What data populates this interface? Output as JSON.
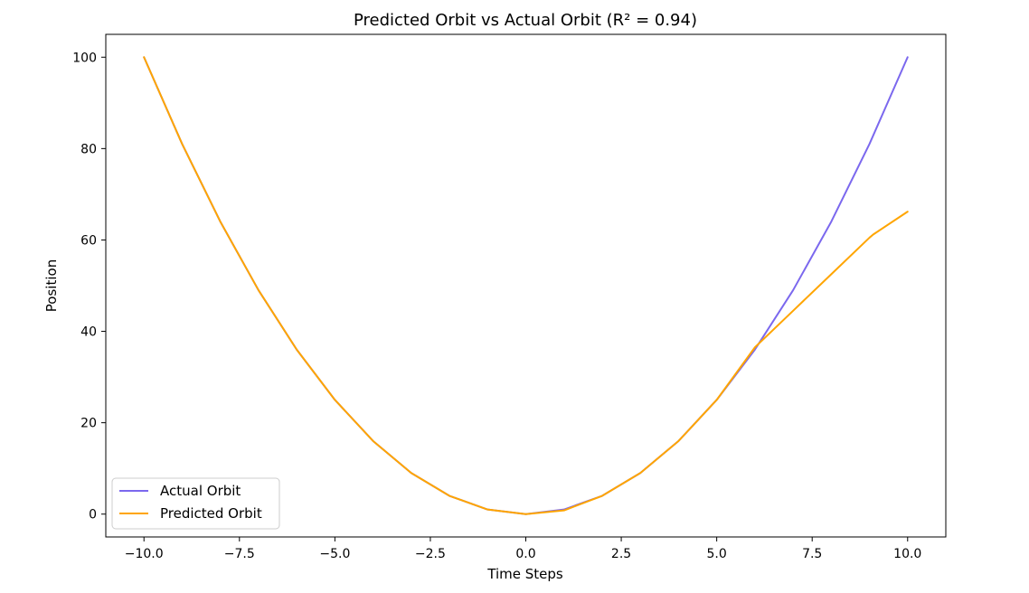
{
  "chart_data": {
    "type": "line",
    "title": "Predicted Orbit vs Actual Orbit (R² = 0.94)",
    "xlabel": "Time Steps",
    "ylabel": "Position",
    "xlim": [
      -11.0,
      11.0
    ],
    "ylim": [
      -5.0,
      105.0
    ],
    "xticks": [
      -10.0,
      -7.5,
      -5.0,
      -2.5,
      0.0,
      2.5,
      5.0,
      7.5,
      10.0
    ],
    "xtick_labels": [
      "−10.0",
      "−7.5",
      "−5.0",
      "−2.5",
      "0.0",
      "2.5",
      "5.0",
      "7.5",
      "10.0"
    ],
    "yticks": [
      0,
      20,
      40,
      60,
      80,
      100
    ],
    "ytick_labels": [
      "0",
      "20",
      "40",
      "60",
      "80",
      "100"
    ],
    "grid": false,
    "legend_position": "lower-left",
    "series": [
      {
        "name": "Actual Orbit",
        "color": "#7b68ee",
        "x": [
          -10,
          -9,
          -8,
          -7,
          -6,
          -5,
          -4,
          -3,
          -2,
          -1,
          0,
          1,
          2,
          3,
          4,
          5,
          6,
          7,
          8,
          9,
          10
        ],
        "y": [
          100,
          81,
          64,
          49,
          36,
          25,
          16,
          9,
          4,
          1,
          0,
          1,
          4,
          9,
          16,
          25,
          36,
          49,
          64,
          81,
          100
        ]
      },
      {
        "name": "Predicted Orbit",
        "color": "#ffa500",
        "x": [
          -10,
          -9,
          -8,
          -7,
          -6,
          -5,
          -4,
          -3,
          -2,
          -1,
          0,
          1,
          2,
          3,
          4,
          5,
          6,
          7,
          8,
          9,
          9.1,
          10
        ],
        "y": [
          100,
          81,
          64,
          49,
          36,
          25,
          16,
          9,
          4,
          1,
          0,
          0.8,
          4,
          9,
          16,
          25,
          36.5,
          44.5,
          52.5,
          60.5,
          61.2,
          66.2
        ]
      }
    ]
  }
}
